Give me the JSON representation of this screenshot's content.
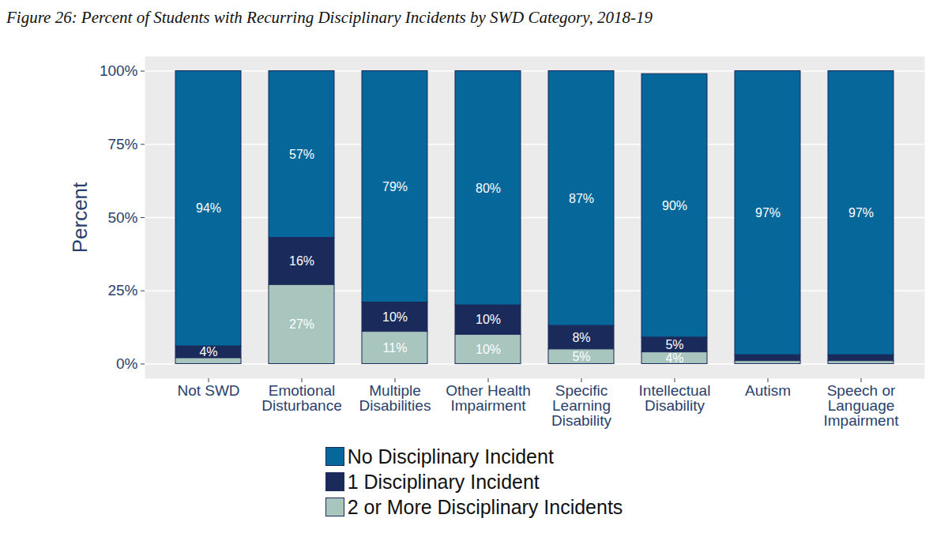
{
  "chart_data": {
    "type": "bar",
    "stacked": true,
    "title": "Figure 26: Percent of Students with Recurring Disciplinary Incidents by SWD Category, 2018-19",
    "ylabel": "Percent",
    "categories": [
      "Not SWD",
      "Emotional Disturbance",
      "Multiple Disabilities",
      "Other Health Impairment",
      "Specific Learning Disability",
      "Intellectual Disability",
      "Autism",
      "Speech or Language Impairment"
    ],
    "series": [
      {
        "name": "No Disciplinary Incident",
        "color": "#05679a",
        "values": [
          94,
          57,
          79,
          80,
          87,
          90,
          97,
          97
        ],
        "value_labels": [
          "94%",
          "57%",
          "79%",
          "80%",
          "87%",
          "90%",
          "97%",
          "97%"
        ]
      },
      {
        "name": "1 Disciplinary Incident",
        "color": "#1a2a5a",
        "values": [
          4,
          16,
          10,
          10,
          8,
          5,
          2,
          2
        ],
        "value_labels": [
          "4%",
          "16%",
          "10%",
          "10%",
          "8%",
          "5%",
          null,
          null
        ]
      },
      {
        "name": "2 or More Disciplinary Incidents",
        "color": "#a8c5be",
        "values": [
          2,
          27,
          11,
          10,
          5,
          4,
          1,
          1
        ],
        "value_labels": [
          null,
          "27%",
          "11%",
          "10%",
          "5%",
          "4%",
          null,
          null
        ]
      }
    ],
    "ylim": [
      -5,
      105
    ],
    "yticks": [
      {
        "value": 0,
        "label": "0%"
      },
      {
        "value": 25,
        "label": "25%"
      },
      {
        "value": 50,
        "label": "50%"
      },
      {
        "value": 75,
        "label": "75%"
      },
      {
        "value": 100,
        "label": "100%"
      }
    ],
    "grid": true,
    "data_labels": true,
    "legend": "bottom"
  }
}
